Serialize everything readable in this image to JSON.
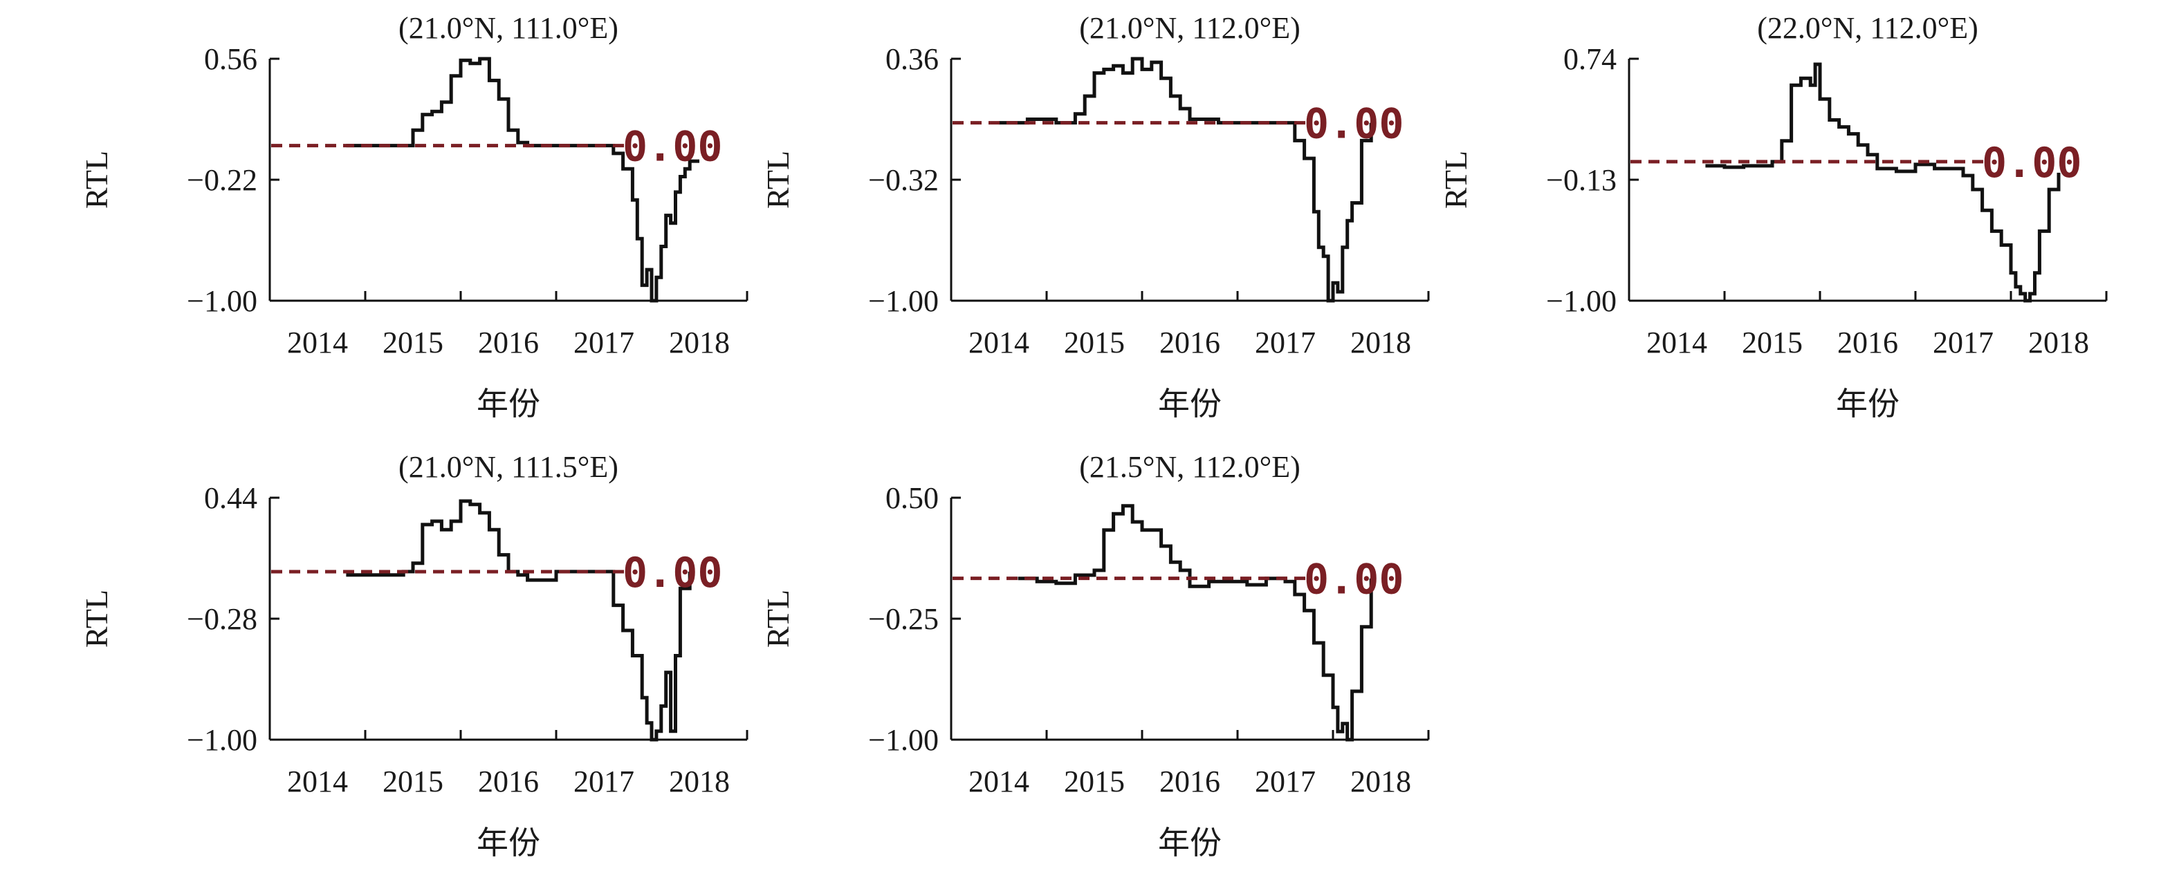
{
  "colors": {
    "series": "#111111",
    "reference": "#7a1f24",
    "axis": "#111111"
  },
  "chart_data": [
    {
      "type": "line",
      "title": "(21.0°N, 111.0°E)",
      "xlabel": "年份",
      "ylabel": "RTL",
      "xlim": [
        2013.5,
        2018.5
      ],
      "ylim": [
        -1.0,
        0.56
      ],
      "yticks": [
        0.56,
        -0.22,
        -1.0
      ],
      "ytick_labels": [
        "0.56",
        "−0.22",
        "−1.00"
      ],
      "xticks": [
        2014,
        2015,
        2016,
        2017,
        2018
      ],
      "xtick_labels": [
        "2014",
        "2015",
        "2016",
        "2017",
        "2018"
      ],
      "grid": false,
      "reference_line": {
        "y": 0.0,
        "label": "0.00",
        "style": "dashed"
      },
      "series": [
        {
          "x": [
            2014.3,
            2014.9,
            2015.0,
            2015.1,
            2015.2,
            2015.3,
            2015.4,
            2015.5,
            2015.6,
            2015.7,
            2015.8,
            2015.9,
            2016.0,
            2016.1,
            2016.2,
            2016.5,
            2017.0,
            2017.1,
            2017.2,
            2017.3,
            2017.35,
            2017.4,
            2017.45,
            2017.5,
            2017.55,
            2017.6,
            2017.65,
            2017.7,
            2017.75,
            2017.8,
            2017.85,
            2017.9,
            2018.0
          ],
          "y": [
            0.0,
            0.0,
            0.1,
            0.2,
            0.22,
            0.28,
            0.45,
            0.55,
            0.53,
            0.56,
            0.42,
            0.3,
            0.1,
            0.02,
            0.0,
            0.0,
            0.0,
            -0.05,
            -0.15,
            -0.35,
            -0.6,
            -0.9,
            -0.8,
            -1.0,
            -0.85,
            -0.65,
            -0.45,
            -0.5,
            -0.3,
            -0.2,
            -0.15,
            -0.1,
            -0.1
          ]
        }
      ]
    },
    {
      "type": "line",
      "title": "(21.0°N, 112.0°E)",
      "xlabel": "年份",
      "ylabel": "RTL",
      "xlim": [
        2013.5,
        2018.5
      ],
      "ylim": [
        -1.0,
        0.36
      ],
      "yticks": [
        0.36,
        -0.32,
        -1.0
      ],
      "ytick_labels": [
        "0.36",
        "−0.32",
        "−1.00"
      ],
      "xticks": [
        2014,
        2015,
        2016,
        2017,
        2018
      ],
      "xtick_labels": [
        "2014",
        "2015",
        "2016",
        "2017",
        "2018"
      ],
      "grid": false,
      "reference_line": {
        "y": 0.0,
        "label": "0.00",
        "style": "dashed"
      },
      "series": [
        {
          "x": [
            2014.0,
            2014.3,
            2014.6,
            2014.7,
            2014.8,
            2014.9,
            2015.0,
            2015.1,
            2015.2,
            2015.3,
            2015.4,
            2015.5,
            2015.6,
            2015.7,
            2015.8,
            2015.9,
            2016.0,
            2016.3,
            2016.6,
            2017.0,
            2017.1,
            2017.2,
            2017.3,
            2017.35,
            2017.4,
            2017.45,
            2017.5,
            2017.55,
            2017.6,
            2017.65,
            2017.7,
            2017.8,
            2017.9
          ],
          "y": [
            0.0,
            0.02,
            0.0,
            0.0,
            0.05,
            0.15,
            0.28,
            0.3,
            0.32,
            0.28,
            0.36,
            0.3,
            0.34,
            0.25,
            0.15,
            0.08,
            0.02,
            0.0,
            0.0,
            0.0,
            -0.1,
            -0.2,
            -0.5,
            -0.7,
            -0.75,
            -1.0,
            -0.9,
            -0.95,
            -0.7,
            -0.55,
            -0.45,
            -0.1,
            0.0
          ]
        }
      ]
    },
    {
      "type": "line",
      "title": "(22.0°N, 112.0°E)",
      "xlabel": "年份",
      "ylabel": "RTL",
      "xlim": [
        2013.5,
        2018.5
      ],
      "ylim": [
        -1.0,
        0.74
      ],
      "yticks": [
        0.74,
        -0.13,
        -1.0
      ],
      "ytick_labels": [
        "0.74",
        "−0.13",
        "−1.00"
      ],
      "xticks": [
        2014,
        2015,
        2016,
        2017,
        2018
      ],
      "xtick_labels": [
        "2014",
        "2015",
        "2016",
        "2017",
        "2018"
      ],
      "grid": false,
      "reference_line": {
        "y": 0.0,
        "label": "0.00",
        "style": "dashed"
      },
      "series": [
        {
          "x": [
            2014.3,
            2014.5,
            2014.7,
            2014.9,
            2015.0,
            2015.1,
            2015.2,
            2015.3,
            2015.4,
            2015.45,
            2015.5,
            2015.6,
            2015.7,
            2015.8,
            2015.9,
            2016.0,
            2016.1,
            2016.3,
            2016.5,
            2016.7,
            2016.9,
            2017.0,
            2017.1,
            2017.2,
            2017.3,
            2017.4,
            2017.5,
            2017.55,
            2017.6,
            2017.65,
            2017.7,
            2017.75,
            2017.8,
            2017.9,
            2018.0
          ],
          "y": [
            -0.03,
            -0.04,
            -0.03,
            -0.03,
            0.0,
            0.15,
            0.55,
            0.6,
            0.55,
            0.7,
            0.45,
            0.3,
            0.25,
            0.2,
            0.12,
            0.05,
            -0.05,
            -0.07,
            -0.02,
            -0.05,
            -0.05,
            -0.1,
            -0.2,
            -0.35,
            -0.5,
            -0.6,
            -0.8,
            -0.9,
            -0.95,
            -1.0,
            -0.95,
            -0.8,
            -0.5,
            -0.2,
            -0.08
          ]
        }
      ]
    },
    {
      "type": "line",
      "title": "(21.0°N, 111.5°E)",
      "xlabel": "年份",
      "ylabel": "RTL",
      "xlim": [
        2013.5,
        2018.5
      ],
      "ylim": [
        -1.0,
        0.44
      ],
      "yticks": [
        0.44,
        -0.28,
        -1.0
      ],
      "ytick_labels": [
        "0.44",
        "−0.28",
        "−1.00"
      ],
      "xticks": [
        2014,
        2015,
        2016,
        2017,
        2018
      ],
      "xtick_labels": [
        "2014",
        "2015",
        "2016",
        "2017",
        "2018"
      ],
      "grid": false,
      "reference_line": {
        "y": 0.0,
        "label": "0.00",
        "style": "dashed"
      },
      "series": [
        {
          "x": [
            2014.3,
            2014.9,
            2015.0,
            2015.1,
            2015.2,
            2015.3,
            2015.4,
            2015.5,
            2015.6,
            2015.7,
            2015.8,
            2015.9,
            2016.0,
            2016.1,
            2016.2,
            2016.5,
            2017.0,
            2017.1,
            2017.2,
            2017.3,
            2017.4,
            2017.45,
            2017.5,
            2017.55,
            2017.6,
            2017.65,
            2017.7,
            2017.75,
            2017.8,
            2017.9
          ],
          "y": [
            -0.02,
            0.0,
            0.05,
            0.28,
            0.3,
            0.25,
            0.3,
            0.42,
            0.4,
            0.35,
            0.25,
            0.1,
            0.0,
            -0.02,
            -0.05,
            0.0,
            0.0,
            -0.2,
            -0.35,
            -0.5,
            -0.75,
            -0.9,
            -1.0,
            -0.95,
            -0.8,
            -0.6,
            -0.95,
            -0.5,
            -0.1,
            0.0
          ]
        }
      ]
    },
    {
      "type": "line",
      "title": "(21.5°N, 112.0°E)",
      "xlabel": "年份",
      "ylabel": "RTL",
      "xlim": [
        2013.5,
        2018.5
      ],
      "ylim": [
        -1.0,
        0.5
      ],
      "yticks": [
        0.5,
        -0.25,
        -1.0
      ],
      "ytick_labels": [
        "0.50",
        "−0.25",
        "−1.00"
      ],
      "xticks": [
        2014,
        2015,
        2016,
        2017,
        2018
      ],
      "xtick_labels": [
        "2014",
        "2015",
        "2016",
        "2017",
        "2018"
      ],
      "grid": false,
      "reference_line": {
        "y": 0.0,
        "label": "0.00",
        "style": "dashed"
      },
      "series": [
        {
          "x": [
            2014.2,
            2014.4,
            2014.6,
            2014.8,
            2015.0,
            2015.1,
            2015.2,
            2015.3,
            2015.4,
            2015.5,
            2015.6,
            2015.7,
            2015.8,
            2015.9,
            2016.0,
            2016.2,
            2016.4,
            2016.6,
            2016.8,
            2017.0,
            2017.1,
            2017.2,
            2017.3,
            2017.4,
            2017.5,
            2017.55,
            2017.6,
            2017.65,
            2017.7,
            2017.8,
            2017.9
          ],
          "y": [
            0.0,
            -0.02,
            -0.03,
            0.02,
            0.05,
            0.3,
            0.4,
            0.45,
            0.35,
            0.3,
            0.3,
            0.2,
            0.1,
            0.05,
            -0.05,
            -0.02,
            -0.02,
            -0.04,
            0.0,
            -0.02,
            -0.1,
            -0.2,
            -0.4,
            -0.6,
            -0.8,
            -0.95,
            -0.9,
            -1.0,
            -0.7,
            -0.3,
            0.0
          ]
        }
      ]
    }
  ]
}
